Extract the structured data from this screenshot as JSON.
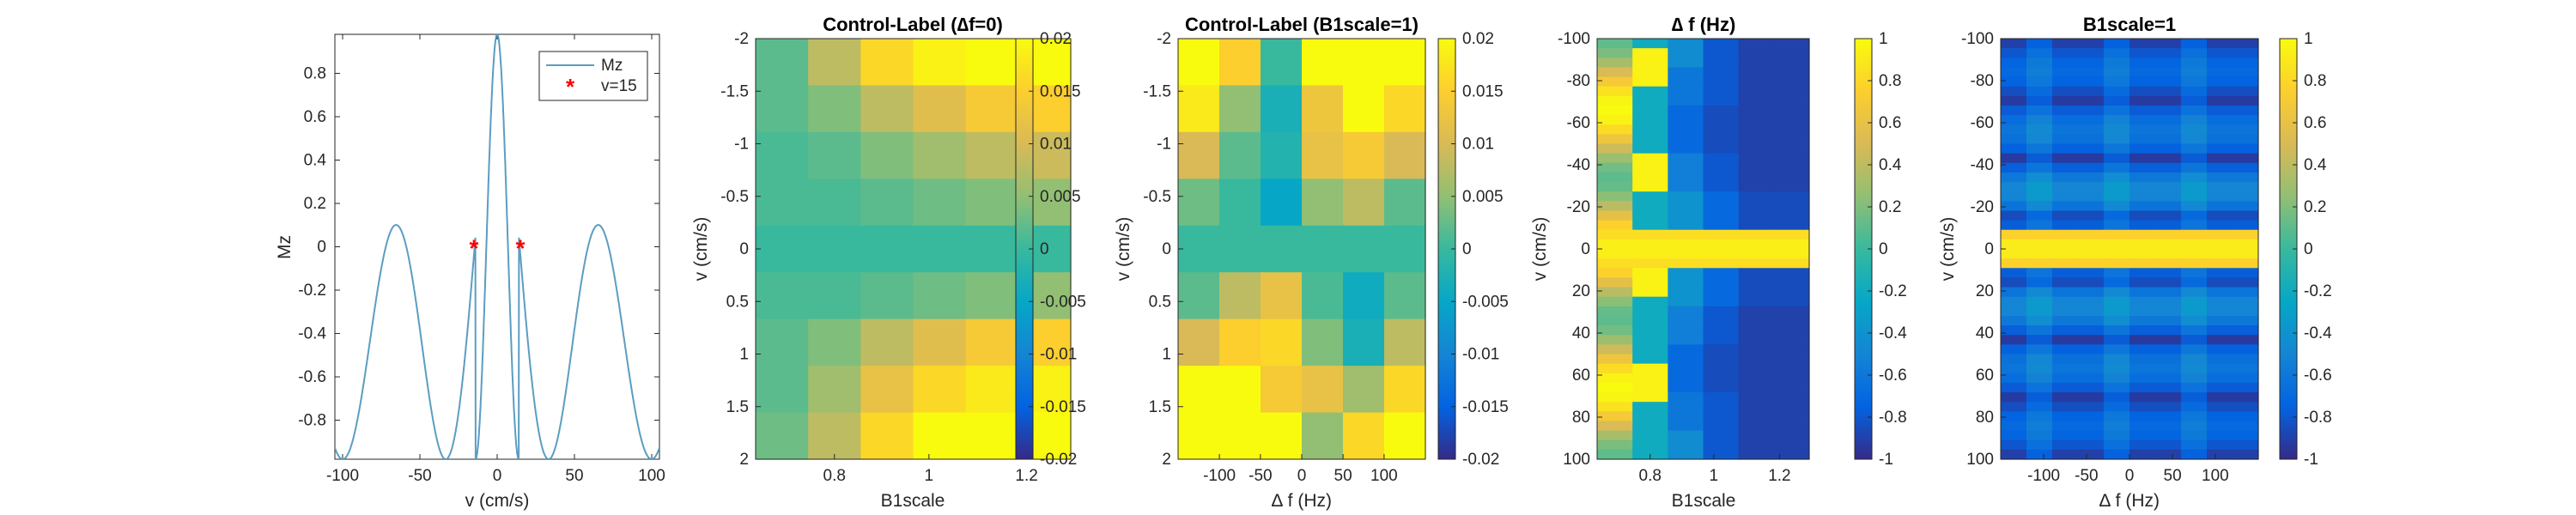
{
  "chart_data": [
    {
      "type": "line",
      "xlabel": "v (cm/s)",
      "ylabel": "Mz",
      "xlim": [
        -105,
        105
      ],
      "ylim": [
        -0.98,
        0.98
      ],
      "xticks": [
        -100,
        -50,
        0,
        50,
        100
      ],
      "yticks": [
        0.8,
        0.6,
        0.4,
        0.2,
        0,
        -0.2,
        -0.4,
        -0.6,
        -0.8
      ],
      "legend": {
        "position": "top-right",
        "entries": [
          "Mz",
          "v=15"
        ]
      },
      "series": [
        {
          "name": "Mz",
          "color": "#5b9dc2",
          "function": "abs_sinc_cos",
          "params": {
            "f": 0.0143,
            "env": 0.025,
            "floor": -0.98
          }
        },
        {
          "name": "v=15",
          "color": "#ff0000",
          "marker": "*",
          "points": [
            [
              -15,
              0
            ],
            [
              15,
              0
            ]
          ]
        }
      ]
    },
    {
      "type": "heatmap",
      "title": "Control-Label (∆f=0)",
      "xlabel": "B1scale",
      "ylabel": "v (cm/s)",
      "xticks": [
        "0.8",
        "1",
        "1.2"
      ],
      "yticks": [
        "-2",
        "-1.5",
        "-1",
        "-0.5",
        "0",
        "0.5",
        "1",
        "1.5",
        "2"
      ],
      "x_values": [
        0.7,
        0.8,
        0.9,
        1.0,
        1.1,
        1.2
      ],
      "y_values": [
        -2,
        -1.5,
        -1,
        -0.5,
        0,
        0.5,
        1,
        1.5,
        2
      ],
      "clim": [
        -0.02,
        0.02
      ],
      "colorbar_ticks": [
        "0.02",
        "0.015",
        "0.01",
        "0.005",
        "0",
        "-0.005",
        "-0.01",
        "-0.015",
        "-0.02"
      ],
      "values": [
        [
          0.002,
          0.008,
          0.016,
          0.019,
          0.02,
          0.02
        ],
        [
          0.002,
          0.004,
          0.008,
          0.011,
          0.014,
          0.015
        ],
        [
          0.001,
          0.002,
          0.004,
          0.006,
          0.008,
          0.009
        ],
        [
          0.001,
          0.001,
          0.002,
          0.003,
          0.004,
          0.005
        ],
        [
          0.0,
          0.0,
          0.0,
          0.0,
          0.0,
          0.0
        ],
        [
          0.001,
          0.001,
          0.002,
          0.003,
          0.004,
          0.005
        ],
        [
          0.002,
          0.004,
          0.008,
          0.011,
          0.014,
          0.015
        ],
        [
          0.002,
          0.006,
          0.012,
          0.016,
          0.018,
          0.019
        ],
        [
          0.003,
          0.008,
          0.016,
          0.02,
          0.02,
          0.02
        ]
      ]
    },
    {
      "type": "heatmap",
      "title": "Control-Label (B1scale=1)",
      "xlabel": "∆ f (Hz)",
      "ylabel": "v (cm/s)",
      "xticks": [
        "-100",
        "-50",
        "0",
        "50",
        "100"
      ],
      "yticks": [
        "-2",
        "-1.5",
        "-1",
        "-0.5",
        "0",
        "0.5",
        "1",
        "1.5",
        "2"
      ],
      "x_values": [
        -125,
        -75,
        -25,
        25,
        75,
        125
      ],
      "y_values": [
        -2,
        -1.5,
        -1,
        -0.5,
        0,
        0.5,
        1,
        1.5,
        2
      ],
      "clim": [
        -0.02,
        0.02
      ],
      "colorbar_ticks": [
        "0.02",
        "0.015",
        "0.01",
        "0.005",
        "0",
        "-0.005",
        "-0.01",
        "-0.015",
        "-0.02"
      ],
      "values": [
        [
          0.02,
          0.015,
          0.0,
          0.02,
          0.02,
          0.02
        ],
        [
          0.018,
          0.005,
          -0.003,
          0.013,
          0.02,
          0.016
        ],
        [
          0.01,
          0.002,
          -0.002,
          0.012,
          0.014,
          0.01
        ],
        [
          0.003,
          0.0,
          -0.005,
          0.005,
          0.008,
          0.002
        ],
        [
          0.0,
          0.0,
          0.0,
          0.0,
          0.0,
          0.0
        ],
        [
          0.002,
          0.008,
          0.012,
          0.001,
          -0.004,
          0.002
        ],
        [
          0.01,
          0.015,
          0.016,
          0.004,
          -0.003,
          0.008
        ],
        [
          0.02,
          0.02,
          0.014,
          0.012,
          0.006,
          0.016
        ],
        [
          0.02,
          0.02,
          0.02,
          0.005,
          0.016,
          0.02
        ]
      ]
    },
    {
      "type": "heatmap",
      "title": "∆ f (Hz)",
      "xlabel": "B1scale",
      "ylabel": "v (cm/s)",
      "xticks": [
        "0.8",
        "1",
        "1.2"
      ],
      "yticks": [
        "-100",
        "-80",
        "-60",
        "-40",
        "-20",
        "0",
        "20",
        "40",
        "60",
        "80",
        "100"
      ],
      "x_values": [
        0.7,
        0.8,
        0.9,
        1.0,
        1.1,
        1.2
      ],
      "y_values": [
        -100,
        -80,
        -60,
        -40,
        -20,
        0,
        20,
        40,
        60,
        80,
        100
      ],
      "clim": [
        -1,
        1
      ],
      "colorbar_ticks": [
        "1",
        "0.8",
        "0.6",
        "0.4",
        "0.2",
        "0",
        "-0.2",
        "-0.4",
        "-0.6",
        "-0.8",
        "-1"
      ],
      "render": "wave-column",
      "values": [
        [
          0.95,
          0.98,
          -0.45,
          -0.8,
          -0.9,
          -0.9
        ],
        [
          0.0,
          0.85,
          -0.6,
          -0.8,
          -0.9,
          -0.9
        ],
        [
          -0.2,
          -0.3,
          -0.7,
          -0.85,
          -0.9,
          -0.9
        ],
        [
          0.1,
          0.95,
          -0.55,
          -0.8,
          -0.9,
          -0.9
        ],
        [
          0.9,
          0.6,
          -0.4,
          -0.7,
          -0.85,
          -0.85
        ],
        [
          0.98,
          0.98,
          0.98,
          0.98,
          0.95,
          0.9
        ],
        [
          0.9,
          0.6,
          -0.4,
          -0.7,
          -0.85,
          -0.85
        ],
        [
          0.1,
          0.95,
          -0.55,
          -0.8,
          -0.9,
          -0.9
        ],
        [
          -0.2,
          -0.3,
          -0.7,
          -0.85,
          -0.9,
          -0.9
        ],
        [
          0.0,
          0.85,
          -0.6,
          -0.8,
          -0.9,
          -0.9
        ],
        [
          0.95,
          0.98,
          -0.45,
          -0.8,
          -0.9,
          -0.9
        ]
      ]
    },
    {
      "type": "heatmap",
      "title": "B1scale=1",
      "xlabel": "∆ f (Hz)",
      "ylabel": "v (cm/s)",
      "xticks": [
        "-100",
        "-50",
        "0",
        "50",
        "100"
      ],
      "yticks": [
        "-100",
        "-80",
        "-60",
        "-40",
        "-20",
        "0",
        "20",
        "40",
        "60",
        "80",
        "100"
      ],
      "x_values": [
        -125,
        -75,
        -25,
        25,
        75,
        125
      ],
      "y_values": [
        -100,
        -80,
        -60,
        -40,
        -20,
        0,
        20,
        40,
        60,
        80,
        100
      ],
      "clim": [
        -1,
        1
      ],
      "colorbar_ticks": [
        "1",
        "0.8",
        "0.6",
        "0.4",
        "0.2",
        "0",
        "-0.2",
        "-0.4",
        "-0.6",
        "-0.8",
        "-1"
      ],
      "render": "sinc-rows",
      "values": [
        [
          -0.6,
          -0.85,
          -0.8,
          -0.85,
          -0.6,
          -0.85
        ],
        [
          -0.75,
          -0.9,
          -0.9,
          -0.9,
          -0.75,
          -0.9
        ],
        [
          -0.7,
          -0.85,
          -0.8,
          -0.85,
          -0.7,
          -0.85
        ],
        [
          -0.6,
          -0.8,
          -0.75,
          -0.8,
          -0.6,
          -0.8
        ],
        [
          -0.3,
          -0.55,
          -0.5,
          -0.55,
          -0.3,
          -0.55
        ],
        [
          0.98,
          0.98,
          0.98,
          0.98,
          0.98,
          0.98
        ],
        [
          -0.3,
          -0.55,
          -0.5,
          -0.55,
          -0.3,
          -0.55
        ],
        [
          -0.6,
          -0.8,
          -0.75,
          -0.8,
          -0.6,
          -0.8
        ],
        [
          -0.7,
          -0.85,
          -0.8,
          -0.85,
          -0.7,
          -0.85
        ],
        [
          -0.75,
          -0.9,
          -0.9,
          -0.9,
          -0.75,
          -0.9
        ],
        [
          -0.6,
          -0.85,
          -0.8,
          -0.85,
          -0.6,
          -0.85
        ]
      ]
    }
  ]
}
